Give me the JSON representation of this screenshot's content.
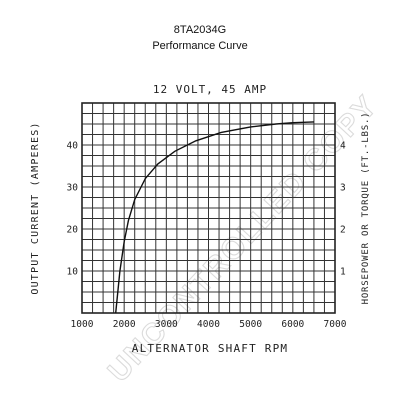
{
  "chart_data": {
    "type": "line",
    "title": "8TA2034G",
    "subtitle": "Performance Curve",
    "inner_title": "12 VOLT, 45 AMP",
    "xlabel": "ALTERNATOR SHAFT RPM",
    "ylabel": "OUTPUT CURRENT (AMPERES)",
    "y2label": "HORSEPOWER OR TORQUE (FT.-LBS.)",
    "xlim": [
      1000,
      7000
    ],
    "ylim": [
      0,
      50
    ],
    "y2lim": [
      0,
      5
    ],
    "x_ticks": [
      "1000",
      "2000",
      "3000",
      "4000",
      "5000",
      "6000",
      "7000"
    ],
    "x_tick_values": [
      1000,
      2000,
      3000,
      4000,
      5000,
      6000,
      7000
    ],
    "y_ticks": [
      "10",
      "20",
      "30",
      "40"
    ],
    "y_tick_values": [
      10,
      20,
      30,
      40
    ],
    "y2_ticks": [
      "1",
      "2",
      "3",
      "4"
    ],
    "y2_tick_values": [
      1,
      2,
      3,
      4
    ],
    "grid": true,
    "series": [
      {
        "values": [
          {
            "x": 1800,
            "y": 0
          },
          {
            "x": 1850,
            "y": 5
          },
          {
            "x": 1900,
            "y": 10
          },
          {
            "x": 2000,
            "y": 17
          },
          {
            "x": 2100,
            "y": 22
          },
          {
            "x": 2250,
            "y": 27
          },
          {
            "x": 2500,
            "y": 32
          },
          {
            "x": 2800,
            "y": 35.5
          },
          {
            "x": 3200,
            "y": 38.5
          },
          {
            "x": 3700,
            "y": 41
          },
          {
            "x": 4300,
            "y": 43
          },
          {
            "x": 5000,
            "y": 44.3
          },
          {
            "x": 5600,
            "y": 45
          },
          {
            "x": 6000,
            "y": 45.3
          },
          {
            "x": 6500,
            "y": 45.5
          }
        ]
      }
    ]
  },
  "watermark": "UNCONTROLLED COPY"
}
